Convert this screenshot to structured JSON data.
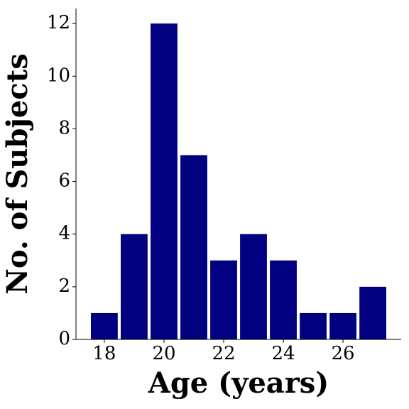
{
  "chart_data": {
    "type": "bar",
    "x": [
      18,
      19,
      20,
      21,
      22,
      23,
      24,
      25,
      26,
      27
    ],
    "values": [
      1,
      4,
      12,
      7,
      3,
      4,
      3,
      1,
      1,
      2
    ],
    "color": "#000080",
    "xlabel": "Age (years)",
    "ylabel": "No. of Subjects",
    "xlim": [
      17.05,
      27.95
    ],
    "xticks": [
      18,
      20,
      22,
      24,
      26
    ],
    "ylim": [
      0,
      12.57
    ],
    "yticks": [
      0,
      2,
      4,
      6,
      8,
      10,
      12
    ],
    "grid": false
  }
}
